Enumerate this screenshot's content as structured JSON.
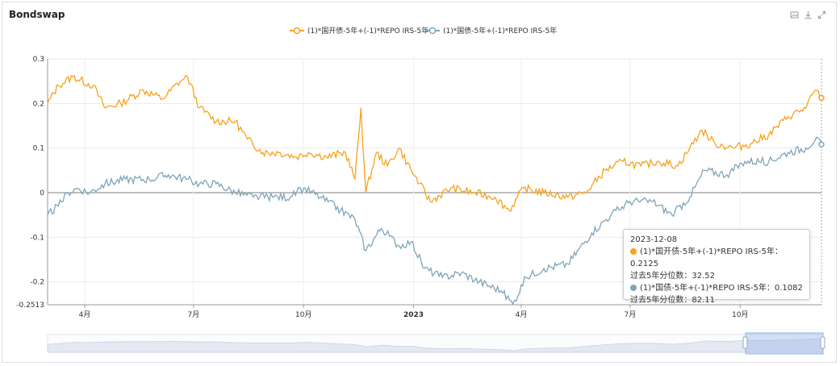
{
  "panel": {
    "title": "Bondswap"
  },
  "tools": {
    "image_icon": "image-icon",
    "download_icon": "download-icon",
    "expand_icon": "expand-icon"
  },
  "chart_data": {
    "type": "line",
    "title": "Bondswap",
    "ylim": [
      -0.2513,
      0.3
    ],
    "y_ticks": [
      0.3,
      0.2,
      0.1,
      0,
      -0.1,
      -0.2,
      -0.2513
    ],
    "y_tick_labels": [
      "0.3",
      "0.2",
      "0.1",
      "0",
      "-0.1",
      "-0.2",
      "-0.2513"
    ],
    "x_range": [
      "2022-03-01",
      "2023-12-08"
    ],
    "x_ticks": [
      {
        "label": "4月",
        "date": "2022-04-01",
        "bold": false
      },
      {
        "label": "7月",
        "date": "2022-07-01",
        "bold": false
      },
      {
        "label": "10月",
        "date": "2022-10-01",
        "bold": false
      },
      {
        "label": "2023",
        "date": "2023-01-01",
        "bold": true
      },
      {
        "label": "4月",
        "date": "2023-04-01",
        "bold": false
      },
      {
        "label": "7月",
        "date": "2023-07-01",
        "bold": false
      },
      {
        "label": "10月",
        "date": "2023-10-01",
        "bold": false
      }
    ],
    "legend_position": "top-center",
    "series": [
      {
        "name": "(1)*国开债-5年+(-1)*REPO IRS-5年",
        "color": "#f7a21b",
        "points": [
          [
            "2022-03-01",
            0.2
          ],
          [
            "2022-03-10",
            0.24
          ],
          [
            "2022-03-22",
            0.26
          ],
          [
            "2022-04-08",
            0.24
          ],
          [
            "2022-04-18",
            0.19
          ],
          [
            "2022-05-01",
            0.2
          ],
          [
            "2022-05-20",
            0.23
          ],
          [
            "2022-06-05",
            0.21
          ],
          [
            "2022-06-20",
            0.25
          ],
          [
            "2022-06-26",
            0.26
          ],
          [
            "2022-07-06",
            0.19
          ],
          [
            "2022-07-20",
            0.16
          ],
          [
            "2022-08-05",
            0.16
          ],
          [
            "2022-08-15",
            0.12
          ],
          [
            "2022-08-28",
            0.09
          ],
          [
            "2022-09-10",
            0.09
          ],
          [
            "2022-09-25",
            0.08
          ],
          [
            "2022-10-05",
            0.09
          ],
          [
            "2022-10-20",
            0.08
          ],
          [
            "2022-11-05",
            0.09
          ],
          [
            "2022-11-13",
            0.03
          ],
          [
            "2022-11-18",
            0.19
          ],
          [
            "2022-11-22",
            0.0
          ],
          [
            "2022-12-01",
            0.09
          ],
          [
            "2022-12-10",
            0.06
          ],
          [
            "2022-12-20",
            0.1
          ],
          [
            "2022-12-30",
            0.05
          ],
          [
            "2023-01-06",
            0.02
          ],
          [
            "2023-01-15",
            -0.02
          ],
          [
            "2023-02-01",
            0.01
          ],
          [
            "2023-02-20",
            0.0
          ],
          [
            "2023-03-10",
            -0.01
          ],
          [
            "2023-03-22",
            -0.04
          ],
          [
            "2023-04-03",
            0.01
          ],
          [
            "2023-04-20",
            0.0
          ],
          [
            "2023-05-10",
            -0.01
          ],
          [
            "2023-05-25",
            0.0
          ],
          [
            "2023-06-10",
            0.05
          ],
          [
            "2023-06-25",
            0.07
          ],
          [
            "2023-07-10",
            0.06
          ],
          [
            "2023-07-25",
            0.07
          ],
          [
            "2023-08-10",
            0.06
          ],
          [
            "2023-08-20",
            0.1
          ],
          [
            "2023-08-30",
            0.14
          ],
          [
            "2023-09-10",
            0.11
          ],
          [
            "2023-09-25",
            0.1
          ],
          [
            "2023-10-10",
            0.11
          ],
          [
            "2023-10-25",
            0.13
          ],
          [
            "2023-11-10",
            0.17
          ],
          [
            "2023-11-25",
            0.19
          ],
          [
            "2023-12-03",
            0.23
          ],
          [
            "2023-12-08",
            0.2125
          ]
        ]
      },
      {
        "name": "(1)*国债-5年+(-1)*REPO IRS-5年",
        "color": "#7fa4b9",
        "points": [
          [
            "2022-03-01",
            -0.05
          ],
          [
            "2022-03-10",
            -0.03
          ],
          [
            "2022-03-18",
            0.0
          ],
          [
            "2022-03-26",
            0.01
          ],
          [
            "2022-04-05",
            0.0
          ],
          [
            "2022-04-18",
            0.02
          ],
          [
            "2022-05-05",
            0.03
          ],
          [
            "2022-05-25",
            0.03
          ],
          [
            "2022-06-10",
            0.04
          ],
          [
            "2022-06-25",
            0.03
          ],
          [
            "2022-07-06",
            0.02
          ],
          [
            "2022-07-20",
            0.02
          ],
          [
            "2022-08-05",
            0.0
          ],
          [
            "2022-08-20",
            -0.01
          ],
          [
            "2022-09-05",
            -0.01
          ],
          [
            "2022-09-20",
            -0.01
          ],
          [
            "2022-10-01",
            0.01
          ],
          [
            "2022-10-15",
            -0.01
          ],
          [
            "2022-11-01",
            -0.04
          ],
          [
            "2022-11-13",
            -0.06
          ],
          [
            "2022-11-22",
            -0.13
          ],
          [
            "2022-12-05",
            -0.08
          ],
          [
            "2022-12-20",
            -0.12
          ],
          [
            "2022-12-30",
            -0.11
          ],
          [
            "2023-01-10",
            -0.17
          ],
          [
            "2023-01-25",
            -0.19
          ],
          [
            "2023-02-10",
            -0.18
          ],
          [
            "2023-02-25",
            -0.2
          ],
          [
            "2023-03-15",
            -0.22
          ],
          [
            "2023-03-25",
            -0.25
          ],
          [
            "2023-04-05",
            -0.19
          ],
          [
            "2023-04-20",
            -0.17
          ],
          [
            "2023-05-10",
            -0.16
          ],
          [
            "2023-05-30",
            -0.09
          ],
          [
            "2023-06-15",
            -0.05
          ],
          [
            "2023-07-01",
            -0.02
          ],
          [
            "2023-07-20",
            -0.02
          ],
          [
            "2023-08-05",
            -0.05
          ],
          [
            "2023-08-20",
            -0.01
          ],
          [
            "2023-09-01",
            0.05
          ],
          [
            "2023-09-20",
            0.04
          ],
          [
            "2023-10-05",
            0.07
          ],
          [
            "2023-10-25",
            0.07
          ],
          [
            "2023-11-10",
            0.09
          ],
          [
            "2023-11-25",
            0.1
          ],
          [
            "2023-12-03",
            0.12
          ],
          [
            "2023-12-08",
            0.1082
          ]
        ]
      }
    ],
    "tooltip": {
      "date": "2023-12-08",
      "rows": [
        {
          "label": "(1)*国开债-5年+(-1)*REPO IRS-5年：0.2125",
          "sub": "过去5年分位数：32.52",
          "color": "#f7a21b"
        },
        {
          "label": "(1)*国债-5年+(-1)*REPO IRS-5年：0.1082",
          "sub": "过去5年分位数：82.11",
          "color": "#7fa4b9"
        }
      ]
    }
  }
}
